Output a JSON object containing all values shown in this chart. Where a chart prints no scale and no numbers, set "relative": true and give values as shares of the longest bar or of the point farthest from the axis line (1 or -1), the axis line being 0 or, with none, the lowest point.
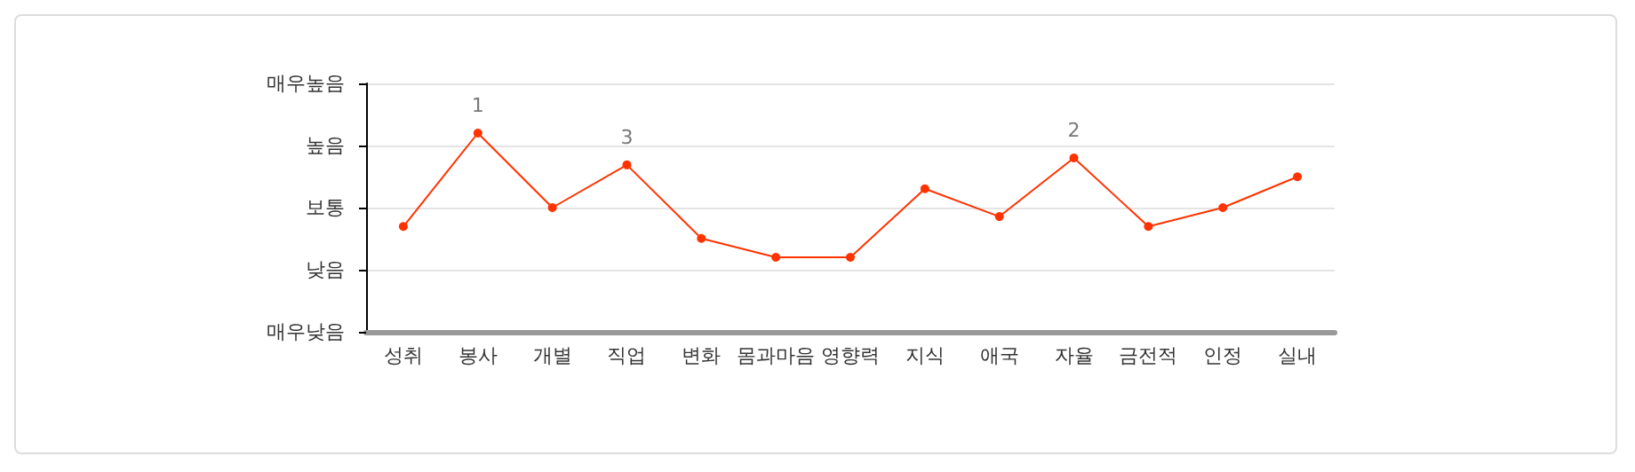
{
  "chart_data": {
    "type": "line",
    "relative": true,
    "categories": [
      "성취",
      "봉사",
      "개별",
      "직업",
      "변화",
      "몸과마음",
      "영향력",
      "지식",
      "애국",
      "자율",
      "금전적",
      "인정",
      "실내"
    ],
    "series": [
      {
        "color": "#ff3300",
        "values": [
          0.53,
          1,
          0.625,
          0.84,
          0.47,
          0.375,
          0.375,
          0.72,
          0.58,
          0.875,
          0.53,
          0.625,
          0.78
        ]
      }
    ],
    "annotations": [
      "매우낮음",
      "낮음",
      "보통",
      "높음",
      "매우높음",
      {
        "text": "1",
        "x": "봉사",
        "y": 1
      },
      {
        "text": "3",
        "x": "직업",
        "y": 0.84
      },
      {
        "text": "2",
        "x": "자율",
        "y": 0.875
      }
    ],
    "grid": "y",
    "marker": "circle",
    "line_style": "solid"
  }
}
